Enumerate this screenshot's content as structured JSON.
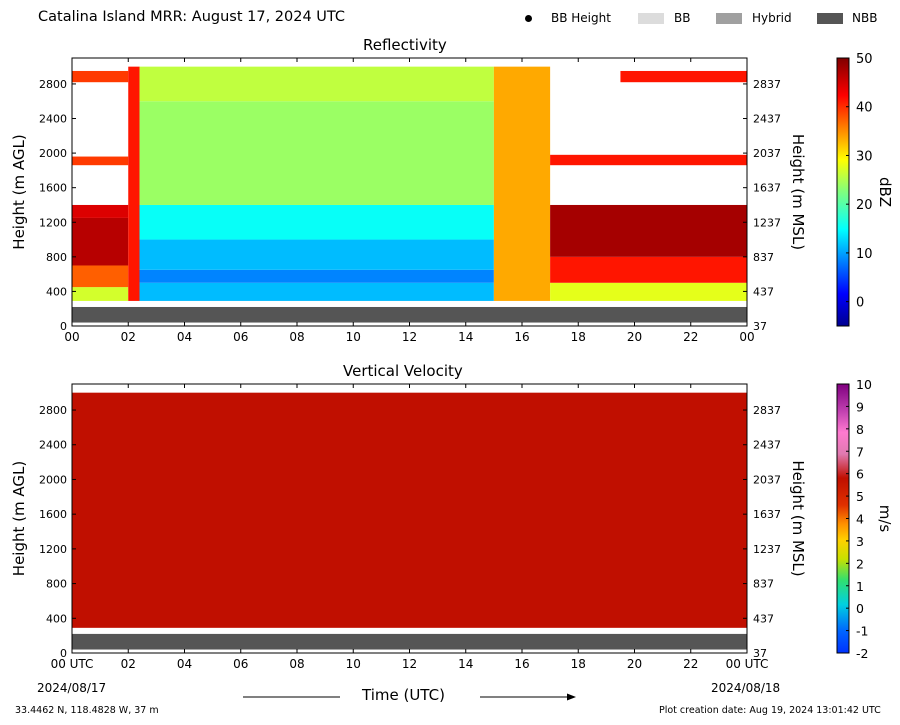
{
  "header": {
    "title": "Catalina Island MRR:  August 17, 2024 UTC",
    "legend": [
      {
        "label": "BB Height",
        "marker": "dot",
        "color": "#000000"
      },
      {
        "label": "BB",
        "marker": "swatch",
        "color": "#dcdcdc"
      },
      {
        "label": "Hybrid",
        "marker": "swatch",
        "color": "#a0a0a0"
      },
      {
        "label": "NBB",
        "marker": "swatch",
        "color": "#555555"
      }
    ]
  },
  "footer": {
    "location": "33.4462 N, 118.4828 W, 37 m",
    "creation_date": "Plot creation date: Aug 19, 2024 13:01:42 UTC",
    "start_date": "2024/08/17",
    "end_date": "2024/08/18",
    "xlabel": "Time (UTC)"
  },
  "colors": {
    "background": "#ffffff",
    "nbb_bar": "#555555",
    "velocity_fill": "#c00f00"
  },
  "chart_data": [
    {
      "type": "heatmap",
      "title": "Reflectivity",
      "xlabel": "Time (UTC)",
      "ylabel": "Height (m AGL)",
      "y2label": "Height (m MSL)",
      "xlim": [
        0,
        24
      ],
      "ylim": [
        0,
        3100
      ],
      "x_ticks": [
        "00",
        "02",
        "04",
        "06",
        "08",
        "10",
        "12",
        "14",
        "16",
        "18",
        "20",
        "22",
        "00"
      ],
      "y_ticks": [
        0,
        400,
        800,
        1200,
        1600,
        2000,
        2400,
        2800
      ],
      "y2_ticks": [
        37,
        437,
        837,
        1237,
        1637,
        2037,
        2437,
        2837
      ],
      "colorbar": {
        "label": "dBZ",
        "range": [
          -5,
          50
        ],
        "ticks": [
          0,
          10,
          20,
          30,
          40,
          50
        ],
        "colormap": "jet"
      },
      "cells": [
        {
          "t0": 0.0,
          "t1": 2.0,
          "h0": 290,
          "h1": 450,
          "dbz": 27
        },
        {
          "t0": 0.0,
          "t1": 2.0,
          "h0": 450,
          "h1": 700,
          "dbz": 38
        },
        {
          "t0": 0.0,
          "t1": 2.0,
          "h0": 700,
          "h1": 1250,
          "dbz": 47
        },
        {
          "t0": 0.0,
          "t1": 2.0,
          "h0": 1250,
          "h1": 1400,
          "dbz": 45
        },
        {
          "t0": 0.0,
          "t1": 2.0,
          "h0": 1860,
          "h1": 1960,
          "dbz": 40
        },
        {
          "t0": 0.0,
          "t1": 2.0,
          "h0": 2820,
          "h1": 2950,
          "dbz": 40
        },
        {
          "t0": 2.0,
          "t1": 2.4,
          "h0": 290,
          "h1": 3000,
          "dbz": 42
        },
        {
          "t0": 2.4,
          "t1": 15.0,
          "h0": 290,
          "h1": 500,
          "dbz": 12
        },
        {
          "t0": 2.4,
          "t1": 15.0,
          "h0": 500,
          "h1": 650,
          "dbz": 9
        },
        {
          "t0": 2.4,
          "t1": 15.0,
          "h0": 650,
          "h1": 1000,
          "dbz": 12
        },
        {
          "t0": 2.4,
          "t1": 15.0,
          "h0": 1000,
          "h1": 1400,
          "dbz": 16
        },
        {
          "t0": 2.4,
          "t1": 15.0,
          "h0": 1400,
          "h1": 2600,
          "dbz": 24
        },
        {
          "t0": 2.4,
          "t1": 15.0,
          "h0": 2600,
          "h1": 3000,
          "dbz": 26
        },
        {
          "t0": 15.0,
          "t1": 17.0,
          "h0": 290,
          "h1": 3000,
          "dbz": 34
        },
        {
          "t0": 17.0,
          "t1": 24.0,
          "h0": 290,
          "h1": 500,
          "dbz": 28
        },
        {
          "t0": 17.0,
          "t1": 24.0,
          "h0": 500,
          "h1": 800,
          "dbz": 42
        },
        {
          "t0": 17.0,
          "t1": 24.0,
          "h0": 800,
          "h1": 1400,
          "dbz": 48
        },
        {
          "t0": 17.0,
          "t1": 24.0,
          "h0": 1860,
          "h1": 1980,
          "dbz": 42
        },
        {
          "t0": 19.5,
          "t1": 24.0,
          "h0": 2820,
          "h1": 2950,
          "dbz": 42
        }
      ]
    },
    {
      "type": "heatmap",
      "title": "Vertical Velocity",
      "xlabel": "Time (UTC)",
      "ylabel": "Height (m AGL)",
      "y2label": "Height (m MSL)",
      "xlim": [
        0,
        24
      ],
      "ylim": [
        0,
        3100
      ],
      "x_ticks": [
        "00 UTC",
        "02",
        "04",
        "06",
        "08",
        "10",
        "12",
        "14",
        "16",
        "18",
        "20",
        "22",
        "00 UTC"
      ],
      "y_ticks": [
        0,
        400,
        800,
        1200,
        1600,
        2000,
        2400,
        2800
      ],
      "y2_ticks": [
        37,
        437,
        837,
        1237,
        1637,
        2037,
        2437,
        2837
      ],
      "colorbar": {
        "label": "m/s",
        "range": [
          -2,
          10
        ],
        "ticks": [
          -2,
          -1,
          0,
          1,
          2,
          3,
          4,
          5,
          6,
          7,
          8,
          9,
          10
        ]
      },
      "cells": [
        {
          "t0": 0.0,
          "t1": 24.0,
          "h0": 290,
          "h1": 3000,
          "ms": 5.9
        }
      ]
    }
  ]
}
